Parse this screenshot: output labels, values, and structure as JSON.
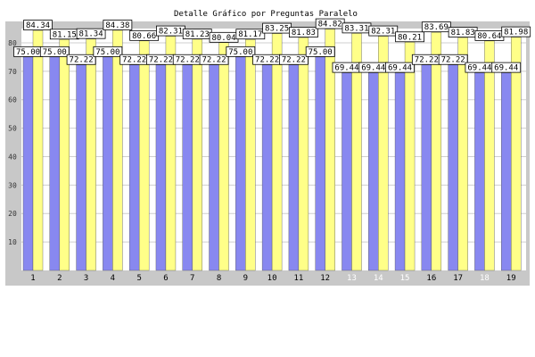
{
  "colors": {
    "frame": "#c8c8c8",
    "plot_bg": "#ffffff",
    "grid": "#cfcfcf",
    "series_a": "#8888f0",
    "series_b": "#ffff88",
    "label_bg": "#ffffff",
    "tick_active": "#000000",
    "tick_inactive": "#ffffff"
  },
  "chart_data": {
    "type": "bar",
    "title": "Detalle Gráfico por Preguntas Paralelo",
    "xlabel": "",
    "ylabel": "",
    "ylim": [
      0,
      85
    ],
    "yticks": [
      10,
      20,
      30,
      40,
      50,
      60,
      70,
      80
    ],
    "grid": true,
    "legend": "none",
    "categories": [
      "1",
      "2",
      "3",
      "4",
      "5",
      "6",
      "7",
      "8",
      "9",
      "10",
      "11",
      "12",
      "13",
      "14",
      "15",
      "16",
      "17",
      "18",
      "19"
    ],
    "inactive_categories": [
      "13",
      "14",
      "15",
      "18"
    ],
    "series": [
      {
        "values": [
          75.0,
          75.0,
          72.22,
          75.0,
          72.22,
          72.22,
          72.22,
          72.22,
          75.0,
          72.22,
          72.22,
          75.0,
          69.44,
          69.44,
          69.44,
          72.22,
          72.22,
          69.44,
          69.44
        ]
      },
      {
        "values": [
          84.34,
          81.15,
          81.34,
          84.38,
          80.66,
          82.31,
          81.23,
          80.04,
          81.17,
          83.25,
          81.83,
          84.82,
          83.31,
          82.31,
          80.21,
          83.69,
          81.83,
          80.64,
          81.98
        ]
      }
    ],
    "data_labels": {
      "series_0": [
        "75.00",
        "75.00",
        "72.22",
        "75.00",
        "72.22",
        "72.22",
        "72.22",
        "72.22",
        "75.00",
        "72.22",
        "72.22",
        "75.00",
        "69.44",
        "69.44",
        "69.44",
        "72.22",
        "72.22",
        "69.44",
        "69.44"
      ],
      "series_1": [
        "84.34",
        "81.15",
        "81.34",
        "84.38",
        "80.66",
        "82.31",
        "81.23",
        "80.04",
        "81.17",
        "83.25",
        "81.83",
        "84.82",
        "83.31",
        "82.31",
        "80.21",
        "83.69",
        "81.83",
        "80.64",
        "81.98"
      ]
    }
  }
}
